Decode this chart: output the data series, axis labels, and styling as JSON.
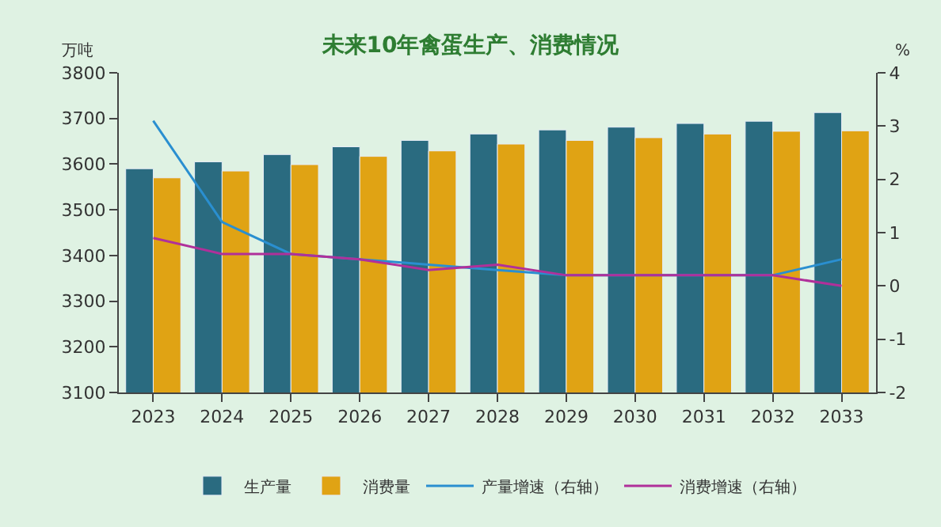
{
  "chart_data": {
    "type": "bar",
    "title": "未来10年禽蛋生产、消费情况",
    "ylabel": "万吨",
    "y2label": "%",
    "categories": [
      "2023",
      "2024",
      "2025",
      "2026",
      "2027",
      "2028",
      "2029",
      "2030",
      "2031",
      "2032",
      "2033"
    ],
    "series": [
      {
        "name": "生产量",
        "color": "#2a6b80",
        "values": [
          3590,
          3605,
          3621,
          3638,
          3652,
          3666,
          3675,
          3681,
          3689,
          3694,
          3713
        ]
      },
      {
        "name": "消费量",
        "color": "#e0a314",
        "values": [
          3570,
          3585,
          3599,
          3617,
          3629,
          3644,
          3652,
          3658,
          3666,
          3672,
          3673
        ]
      },
      {
        "name": "产量增速（右轴）",
        "type": "line",
        "axis": "y2",
        "color": "#2a8fd0",
        "values": [
          3.1,
          1.2,
          0.6,
          0.5,
          0.4,
          0.3,
          0.2,
          0.2,
          0.2,
          0.2,
          0.5
        ]
      },
      {
        "name": "消费增速（右轴）",
        "type": "line",
        "axis": "y2",
        "color": "#b0309a",
        "values": [
          0.9,
          0.6,
          0.6,
          0.5,
          0.3,
          0.4,
          0.2,
          0.2,
          0.2,
          0.2,
          0.0
        ]
      }
    ],
    "ylim": [
      3100,
      3800
    ],
    "yticks": [
      3100,
      3200,
      3300,
      3400,
      3500,
      3600,
      3700,
      3800
    ],
    "y2lim": [
      -2,
      4
    ],
    "y2ticks": [
      -2,
      -1,
      0,
      1,
      2,
      3,
      4
    ],
    "grid": false,
    "legend": "bottom",
    "marker": "none"
  }
}
